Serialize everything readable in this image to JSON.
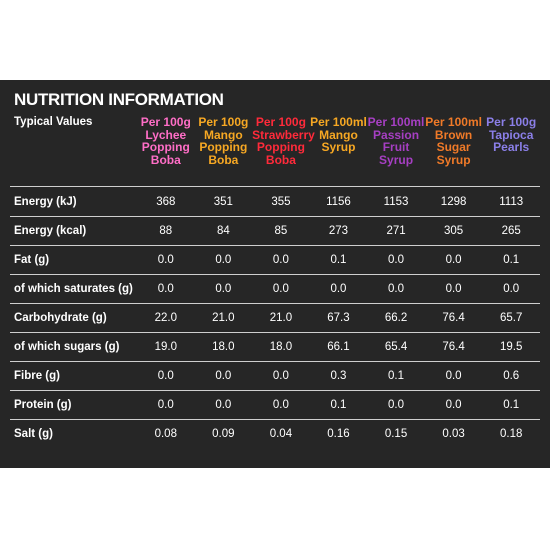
{
  "title": "NUTRITION INFORMATION",
  "label_header": "Typical Values",
  "columns": [
    {
      "lines": [
        "Per 100g",
        "Lychee",
        "Popping",
        "Boba"
      ],
      "color": "#ff6ec7"
    },
    {
      "lines": [
        "Per 100g",
        "Mango",
        "Popping",
        "Boba"
      ],
      "color": "#f7a823"
    },
    {
      "lines": [
        "Per 100g",
        "Strawberry",
        "Popping",
        "Boba"
      ],
      "color": "#ff2a3a"
    },
    {
      "lines": [
        "Per 100ml",
        "Mango",
        "Syrup"
      ],
      "color": "#f7a823"
    },
    {
      "lines": [
        "Per 100ml",
        "Passion",
        "Fruit",
        "Syrup"
      ],
      "color": "#a63fc3"
    },
    {
      "lines": [
        "Per 100ml",
        "Brown",
        "Sugar",
        "Syrup"
      ],
      "color": "#f07a28"
    },
    {
      "lines": [
        "Per 100g",
        "Tapioca",
        "Pearls"
      ],
      "color": "#8b7fe8"
    }
  ],
  "rows": [
    {
      "label": "Energy (kJ)",
      "values": [
        "368",
        "351",
        "355",
        "1156",
        "1153",
        "1298",
        "1113"
      ]
    },
    {
      "label": "Energy (kcal)",
      "values": [
        "88",
        "84",
        "85",
        "273",
        "271",
        "305",
        "265"
      ]
    },
    {
      "label": "Fat (g)",
      "values": [
        "0.0",
        "0.0",
        "0.0",
        "0.1",
        "0.0",
        "0.0",
        "0.1"
      ]
    },
    {
      "label": "of which saturates (g)",
      "values": [
        "0.0",
        "0.0",
        "0.0",
        "0.0",
        "0.0",
        "0.0",
        "0.0"
      ]
    },
    {
      "label": "Carbohydrate (g)",
      "values": [
        "22.0",
        "21.0",
        "21.0",
        "67.3",
        "66.2",
        "76.4",
        "65.7"
      ]
    },
    {
      "label": "of which sugars (g)",
      "values": [
        "19.0",
        "18.0",
        "18.0",
        "66.1",
        "65.4",
        "76.4",
        "19.5"
      ]
    },
    {
      "label": "Fibre (g)",
      "values": [
        "0.0",
        "0.0",
        "0.0",
        "0.3",
        "0.1",
        "0.0",
        "0.6"
      ]
    },
    {
      "label": "Protein (g)",
      "values": [
        "0.0",
        "0.0",
        "0.0",
        "0.1",
        "0.0",
        "0.0",
        "0.1"
      ]
    },
    {
      "label": "Salt (g)",
      "values": [
        "0.08",
        "0.09",
        "0.04",
        "0.16",
        "0.15",
        "0.03",
        "0.18"
      ]
    }
  ]
}
